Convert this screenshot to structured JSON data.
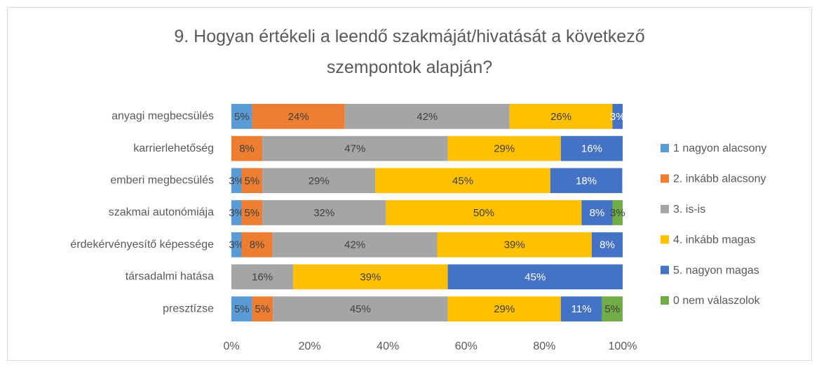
{
  "chart_data": {
    "type": "stacked-barh",
    "title": "9. Hogyan értékeli a leendő szakmáját/hivatását a következő szempontok alapján?",
    "categories": [
      "anyagi megbecsülés",
      "karrierlehetőség",
      "emberi megbecsülés",
      "szakmai autonómiája",
      "érdekérvényesítő képessége",
      "társadalmi hatása",
      "presztízse"
    ],
    "series": [
      {
        "name": "1 nagyon alacsony",
        "color": "#5b9bd5",
        "values": [
          5.3,
          null,
          2.6,
          2.6,
          2.6,
          null,
          5.3
        ],
        "value_labels": [
          "5%",
          null,
          "3%",
          "3%",
          "3%",
          null,
          "5%"
        ]
      },
      {
        "name": "2. inkább alacsony",
        "color": "#ed7d31",
        "values": [
          23.7,
          7.9,
          5.3,
          5.3,
          7.9,
          null,
          5.3
        ],
        "value_labels": [
          "24%",
          "8%",
          "5%",
          "5%",
          "8%",
          null,
          "5%"
        ]
      },
      {
        "name": "3. is-is",
        "color": "#a5a5a5",
        "values": [
          42.1,
          47.4,
          28.9,
          31.6,
          42.1,
          15.8,
          44.7
        ],
        "value_labels": [
          "42%",
          "47%",
          "29%",
          "32%",
          "42%",
          "16%",
          "45%"
        ]
      },
      {
        "name": "4. inkább magas",
        "color": "#ffc000",
        "values": [
          26.3,
          28.9,
          44.7,
          50.0,
          39.5,
          39.5,
          28.9
        ],
        "value_labels": [
          "26%",
          "29%",
          "45%",
          "50%",
          "39%",
          "39%",
          "29%"
        ]
      },
      {
        "name": "5. nagyon magas",
        "color": "#4472c4",
        "values": [
          2.6,
          15.8,
          18.4,
          7.9,
          7.9,
          44.7,
          10.5
        ],
        "value_labels": [
          "3%",
          "16%",
          "18%",
          "8%",
          "8%",
          "45%",
          "11%"
        ]
      },
      {
        "name": "0 nem válaszolok",
        "color": "#70ad47",
        "values": [
          null,
          null,
          null,
          2.6,
          null,
          null,
          5.3
        ],
        "value_labels": [
          null,
          null,
          null,
          "3%",
          null,
          null,
          "5%"
        ]
      }
    ],
    "xlim": [
      0,
      100
    ],
    "xticks": [
      {
        "value": 0,
        "label": "0%"
      },
      {
        "value": 20,
        "label": "20%"
      },
      {
        "value": 40,
        "label": "40%"
      },
      {
        "value": 60,
        "label": "60%"
      },
      {
        "value": 80,
        "label": "80%"
      },
      {
        "value": 100,
        "label": "100%"
      }
    ],
    "legend": "right"
  }
}
